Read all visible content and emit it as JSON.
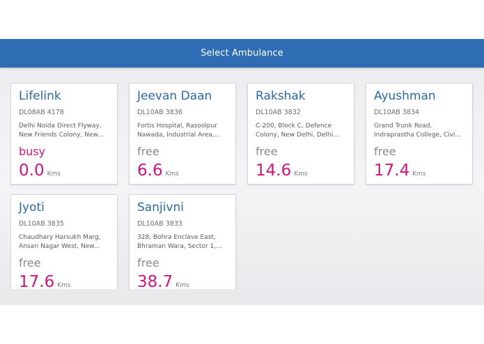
{
  "app_bar": {
    "title": "Select Ambulance"
  },
  "ambulances": [
    {
      "name": "Lifelink",
      "plate": "DL08AB 4178",
      "address_line1": "Delhi Noida Direct Flyway,",
      "address_line2": "New Friends Colony, New...",
      "status": "busy",
      "distance": "0.0",
      "unit": "Kms"
    },
    {
      "name": "Jeevan Daan",
      "plate": "DL10AB 3836",
      "address_line1": "Fortis Hospital, Rasoolpur",
      "address_line2": "Nawada, Industrial Area,...",
      "status": "free",
      "distance": "6.6",
      "unit": "Kms"
    },
    {
      "name": "Rakshak",
      "plate": "DL10AB 3832",
      "address_line1": "C-200, Block C, Defence",
      "address_line2": "Colony, New Delhi, Delhi...",
      "status": "free",
      "distance": "14.6",
      "unit": "Kms"
    },
    {
      "name": "Ayushman",
      "plate": "DL10AB 3834",
      "address_line1": "Grand Trunk Road,",
      "address_line2": "Indraprastha College, Civi...",
      "status": "free",
      "distance": "17.4",
      "unit": "Kms"
    },
    {
      "name": "Jyoti",
      "plate": "DL10AB 3835",
      "address_line1": "Chaudhary Harsukh Marg,",
      "address_line2": "Ansari Nagar West, New...",
      "status": "free",
      "distance": "17.6",
      "unit": "Kms"
    },
    {
      "name": "Sanjivni",
      "plate": "DL10AB 3833",
      "address_line1": "328, Bohra Enclave East,",
      "address_line2": "Bhraman Wara, Sector 1,...",
      "status": "free",
      "distance": "38.7",
      "unit": "Kms"
    }
  ],
  "colors": {
    "app_bar": "#2e6db4",
    "name_text": "#2a6aaa",
    "busy_status": "#d4147d",
    "distance_value": "#d4147d"
  }
}
